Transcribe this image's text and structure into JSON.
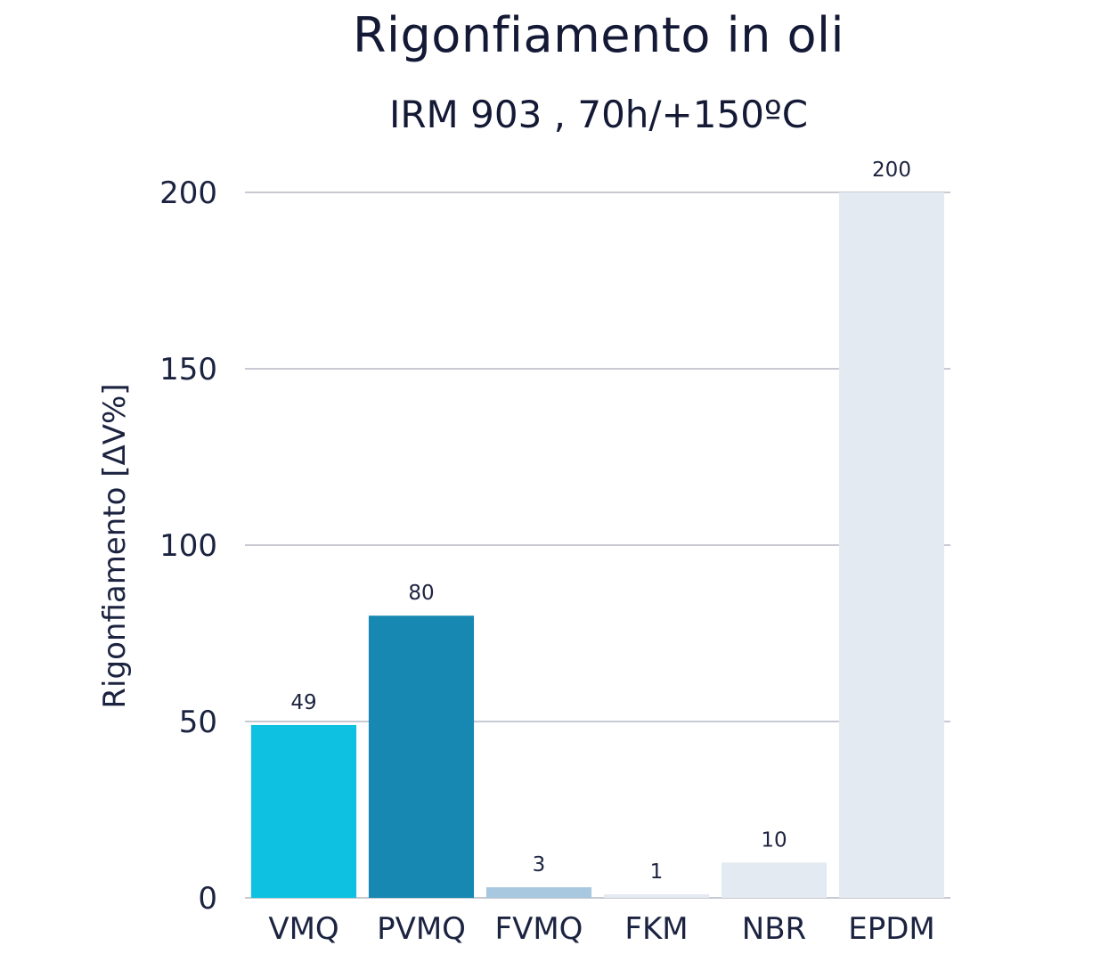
{
  "chart_data": {
    "type": "bar",
    "title": "Rigonfiamento in oli",
    "subtitle": "IRM 903 , 70h/+150ºC",
    "xlabel": "",
    "ylabel": "Rigonfiamento [ΔV%]",
    "ylim": [
      0,
      200
    ],
    "yticks": [
      0,
      50,
      100,
      150,
      200
    ],
    "grid": true,
    "categories": [
      "VMQ",
      "PVMQ",
      "FVMQ",
      "FKM",
      "NBR",
      "EPDM"
    ],
    "values": [
      49,
      80,
      3,
      1,
      10,
      200
    ],
    "colors": [
      "#0fc1e0",
      "#1788b1",
      "#a7c8de",
      "#e4eaf1",
      "#e4eaf1",
      "#e4eaf1"
    ],
    "grid_color": "#c8c9d2",
    "text_color": "#1c2340"
  }
}
